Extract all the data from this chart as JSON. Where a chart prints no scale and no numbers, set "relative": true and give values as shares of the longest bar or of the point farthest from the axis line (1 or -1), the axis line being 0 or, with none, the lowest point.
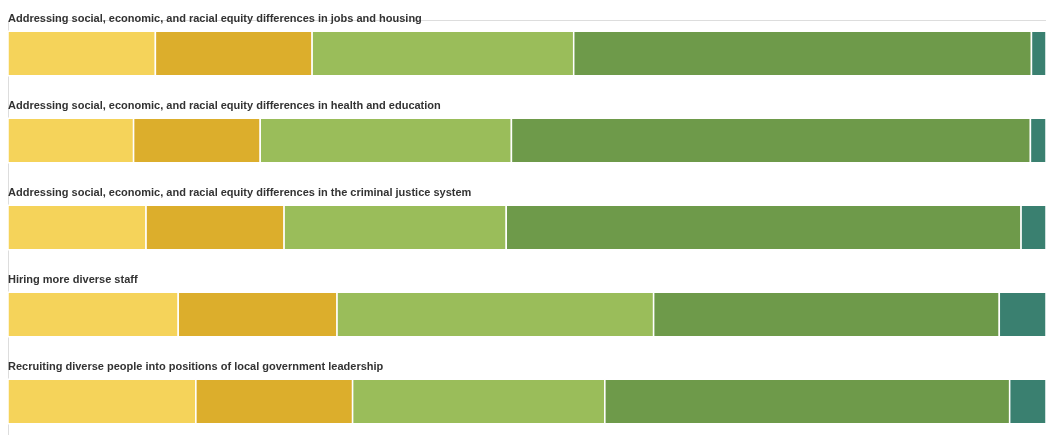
{
  "chart_data": {
    "type": "bar",
    "orientation": "horizontal",
    "stacked": true,
    "relative": true,
    "categories": [
      "Addressing social, economic, and racial equity differences in jobs and housing",
      "Addressing social, economic, and racial equity differences in health and education",
      "Addressing social, economic, and racial equity differences in the criminal justice system",
      "Hiring more diverse staff",
      "Recruiting diverse people into positions of local government leadership"
    ],
    "series": [
      {
        "color": "#f5d35a",
        "values": [
          0.142,
          0.121,
          0.133,
          0.164,
          0.181
        ]
      },
      {
        "color": "#dcae2c",
        "values": [
          0.151,
          0.122,
          0.133,
          0.153,
          0.151
        ]
      },
      {
        "color": "#9abd5a",
        "values": [
          0.252,
          0.242,
          0.214,
          0.305,
          0.243
        ]
      },
      {
        "color": "#6e9a4a",
        "values": [
          0.441,
          0.5,
          0.496,
          0.333,
          0.39
        ]
      },
      {
        "color": "#3a8070",
        "values": [
          0.014,
          0.015,
          0.024,
          0.045,
          0.035
        ]
      }
    ]
  }
}
